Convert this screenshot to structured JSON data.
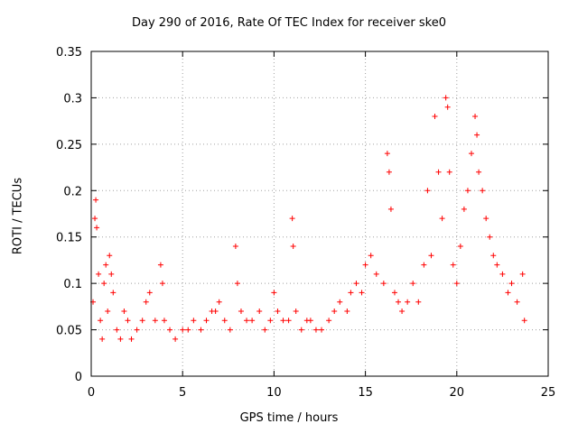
{
  "chart_data": {
    "type": "scatter",
    "title": "Day 290 of 2016, Rate Of TEC Index for receiver ske0",
    "xlabel": "GPS time / hours",
    "ylabel": "ROTI / TECUs",
    "xlim": [
      0,
      25
    ],
    "ylim": [
      0,
      0.35
    ],
    "x_ticks": [
      "0",
      "5",
      "10",
      "15",
      "20",
      "25"
    ],
    "y_ticks": [
      "0",
      "0.05",
      "0.1",
      "0.15",
      "0.2",
      "0.25",
      "0.3",
      "0.35"
    ],
    "grid": true,
    "marker": "+",
    "color": "#ff0000",
    "series": [
      {
        "name": "ROTI",
        "points": [
          [
            0.1,
            0.08
          ],
          [
            0.2,
            0.17
          ],
          [
            0.25,
            0.19
          ],
          [
            0.3,
            0.16
          ],
          [
            0.4,
            0.11
          ],
          [
            0.5,
            0.06
          ],
          [
            0.6,
            0.04
          ],
          [
            0.7,
            0.1
          ],
          [
            0.8,
            0.12
          ],
          [
            0.9,
            0.07
          ],
          [
            1.0,
            0.13
          ],
          [
            1.1,
            0.11
          ],
          [
            1.2,
            0.09
          ],
          [
            1.4,
            0.05
          ],
          [
            1.6,
            0.04
          ],
          [
            1.8,
            0.07
          ],
          [
            2.0,
            0.06
          ],
          [
            2.2,
            0.04
          ],
          [
            2.5,
            0.05
          ],
          [
            2.8,
            0.06
          ],
          [
            3.0,
            0.08
          ],
          [
            3.2,
            0.09
          ],
          [
            3.5,
            0.06
          ],
          [
            3.8,
            0.12
          ],
          [
            3.9,
            0.1
          ],
          [
            4.0,
            0.06
          ],
          [
            4.3,
            0.05
          ],
          [
            4.6,
            0.04
          ],
          [
            5.0,
            0.05
          ],
          [
            5.3,
            0.05
          ],
          [
            5.6,
            0.06
          ],
          [
            6.0,
            0.05
          ],
          [
            6.3,
            0.06
          ],
          [
            6.6,
            0.07
          ],
          [
            6.8,
            0.07
          ],
          [
            7.0,
            0.08
          ],
          [
            7.3,
            0.06
          ],
          [
            7.6,
            0.05
          ],
          [
            7.9,
            0.14
          ],
          [
            8.0,
            0.1
          ],
          [
            8.2,
            0.07
          ],
          [
            8.5,
            0.06
          ],
          [
            8.8,
            0.06
          ],
          [
            9.2,
            0.07
          ],
          [
            9.5,
            0.05
          ],
          [
            9.8,
            0.06
          ],
          [
            10.0,
            0.09
          ],
          [
            10.2,
            0.07
          ],
          [
            10.5,
            0.06
          ],
          [
            10.8,
            0.06
          ],
          [
            11.0,
            0.17
          ],
          [
            11.05,
            0.14
          ],
          [
            11.2,
            0.07
          ],
          [
            11.5,
            0.05
          ],
          [
            11.8,
            0.06
          ],
          [
            12.0,
            0.06
          ],
          [
            12.3,
            0.05
          ],
          [
            12.6,
            0.05
          ],
          [
            13.0,
            0.06
          ],
          [
            13.3,
            0.07
          ],
          [
            13.6,
            0.08
          ],
          [
            14.0,
            0.07
          ],
          [
            14.2,
            0.09
          ],
          [
            14.5,
            0.1
          ],
          [
            14.8,
            0.09
          ],
          [
            15.0,
            0.12
          ],
          [
            15.3,
            0.13
          ],
          [
            15.6,
            0.11
          ],
          [
            16.0,
            0.1
          ],
          [
            16.2,
            0.24
          ],
          [
            16.3,
            0.22
          ],
          [
            16.4,
            0.18
          ],
          [
            16.6,
            0.09
          ],
          [
            16.8,
            0.08
          ],
          [
            17.0,
            0.07
          ],
          [
            17.3,
            0.08
          ],
          [
            17.6,
            0.1
          ],
          [
            17.9,
            0.08
          ],
          [
            18.2,
            0.12
          ],
          [
            18.4,
            0.2
          ],
          [
            18.6,
            0.13
          ],
          [
            18.8,
            0.28
          ],
          [
            19.0,
            0.22
          ],
          [
            19.2,
            0.17
          ],
          [
            19.4,
            0.3
          ],
          [
            19.5,
            0.29
          ],
          [
            19.6,
            0.22
          ],
          [
            19.8,
            0.12
          ],
          [
            20.0,
            0.1
          ],
          [
            20.2,
            0.14
          ],
          [
            20.4,
            0.18
          ],
          [
            20.6,
            0.2
          ],
          [
            20.8,
            0.24
          ],
          [
            21.0,
            0.28
          ],
          [
            21.1,
            0.26
          ],
          [
            21.2,
            0.22
          ],
          [
            21.4,
            0.2
          ],
          [
            21.6,
            0.17
          ],
          [
            21.8,
            0.15
          ],
          [
            22.0,
            0.13
          ],
          [
            22.2,
            0.12
          ],
          [
            22.5,
            0.11
          ],
          [
            22.8,
            0.09
          ],
          [
            23.0,
            0.1
          ],
          [
            23.3,
            0.08
          ],
          [
            23.6,
            0.11
          ],
          [
            23.7,
            0.06
          ]
        ]
      }
    ]
  }
}
